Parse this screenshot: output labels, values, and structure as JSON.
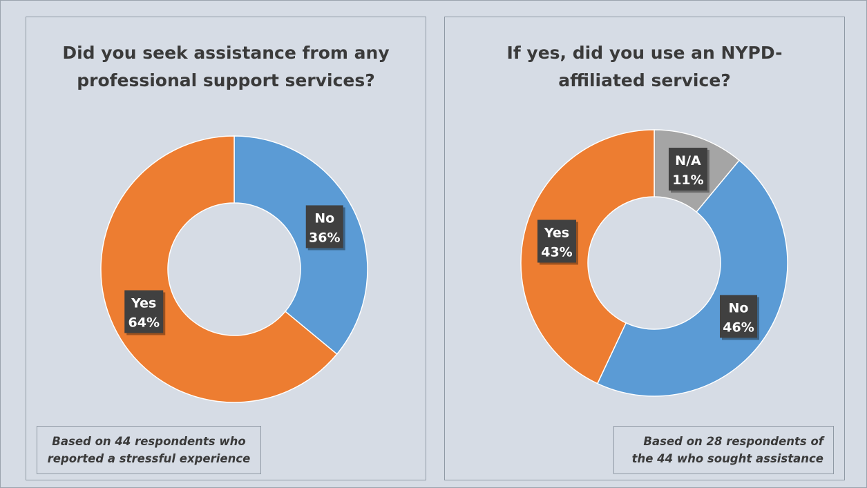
{
  "chart_data": [
    {
      "type": "pie",
      "style": "donut",
      "title": "Did you seek assistance from any\nprofessional support services?",
      "slices": [
        {
          "label": "No",
          "value": 36,
          "display": "36%",
          "color": "#5b9bd5"
        },
        {
          "label": "Yes",
          "value": 64,
          "display": "64%",
          "color": "#ed7d31"
        }
      ],
      "note": "Based on 44 respondents who\nreported a stressful experience"
    },
    {
      "type": "pie",
      "style": "donut",
      "title": "If yes, did you use an NYPD-\naffiliated service?",
      "slices": [
        {
          "label": "N/A",
          "value": 11,
          "display": "11%",
          "color": "#a5a5a5"
        },
        {
          "label": "No",
          "value": 46,
          "display": "46%",
          "color": "#5b9bd5"
        },
        {
          "label": "Yes",
          "value": 43,
          "display": "43%",
          "color": "#ed7d31"
        }
      ],
      "note": "Based on 28 respondents of\nthe 44 who sought assistance"
    }
  ]
}
